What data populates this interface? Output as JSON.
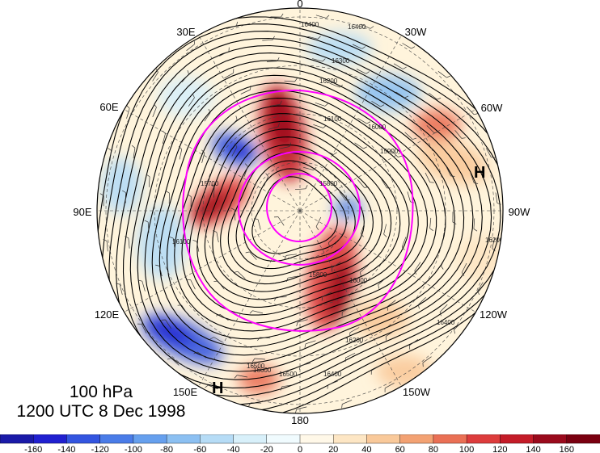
{
  "title": {
    "level": "100 hPa",
    "time": "1200 UTC 8 Dec 1998"
  },
  "map": {
    "projection": "polar-stereographic-north",
    "longitude_labels": [
      "0",
      "30W",
      "60W",
      "90W",
      "120W",
      "150W",
      "180",
      "150E",
      "120E",
      "90E",
      "60E",
      "30E"
    ],
    "high_markers": [
      "H",
      "H"
    ],
    "contour_labels": [
      "16400",
      "16400",
      "16300",
      "16200",
      "16100",
      "16000",
      "15900",
      "15800",
      "16200",
      "16300",
      "16400",
      "16500",
      "16600",
      "16500",
      "16400",
      "16200",
      "16000",
      "15800",
      "15700",
      "16100"
    ],
    "contour_color": "#000000",
    "jet_outline_color": "#ff00ff"
  },
  "colorbar": {
    "colors": [
      "#2020d0",
      "#3355e0",
      "#4a7ce8",
      "#66a0ee",
      "#8cc0f2",
      "#b6dcf6",
      "#d8f0fa",
      "#f0fbfe",
      "#fff8e8",
      "#fde6c4",
      "#f9c99a",
      "#f3a273",
      "#ea7055",
      "#dd3c3c",
      "#c41c28",
      "#9a0a1c"
    ],
    "tick_labels": [
      "-160",
      "-140",
      "-120",
      "-100",
      "-80",
      "-60",
      "-40",
      "-20",
      "0",
      "20",
      "40",
      "60",
      "80",
      "100",
      "120",
      "140",
      "160"
    ]
  }
}
